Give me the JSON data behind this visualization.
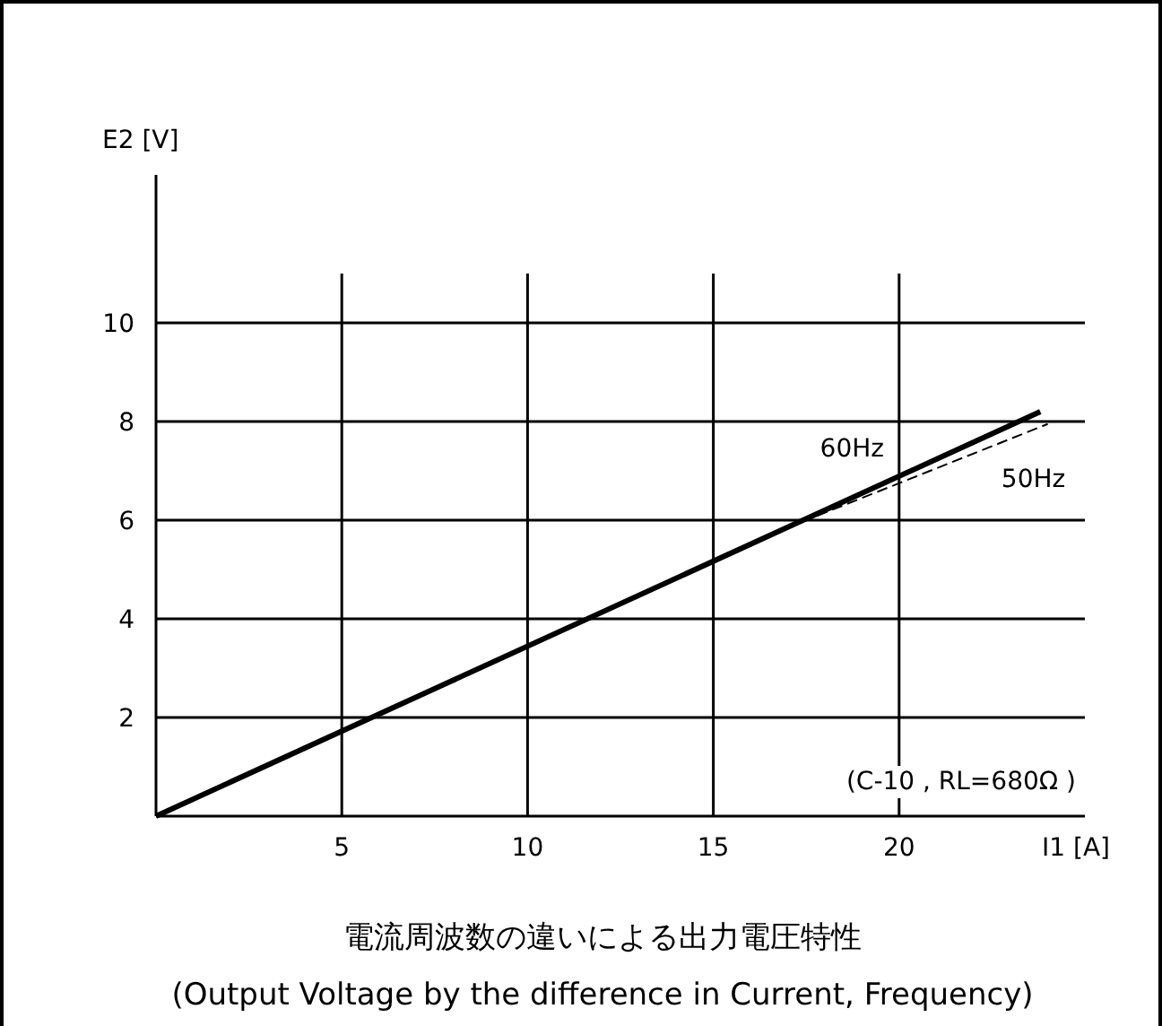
{
  "chart_data": {
    "type": "line",
    "title": "電流周波数の違いによる出力電圧特性",
    "subtitle": "(Output Voltage by the difference in Current, Frequency)",
    "xlabel": "I1 [A]",
    "ylabel": "E2 [V]",
    "xlim": [
      0,
      25
    ],
    "ylim": [
      0,
      13
    ],
    "xticks": [
      5,
      10,
      15,
      20
    ],
    "yticks": [
      2,
      4,
      6,
      8,
      10
    ],
    "grid": true,
    "annotations": [
      "(C-10 , RL=680Ω )"
    ],
    "series": [
      {
        "name": "60Hz",
        "color": "#000000",
        "line_style": "solid",
        "x": [
          0,
          23.8
        ],
        "values": [
          0,
          8.2
        ]
      },
      {
        "name": "50Hz",
        "color": "#000000",
        "line_style": "dashed",
        "x": [
          0,
          17.5,
          24
        ],
        "values": [
          0,
          6.0,
          7.95
        ]
      }
    ]
  }
}
